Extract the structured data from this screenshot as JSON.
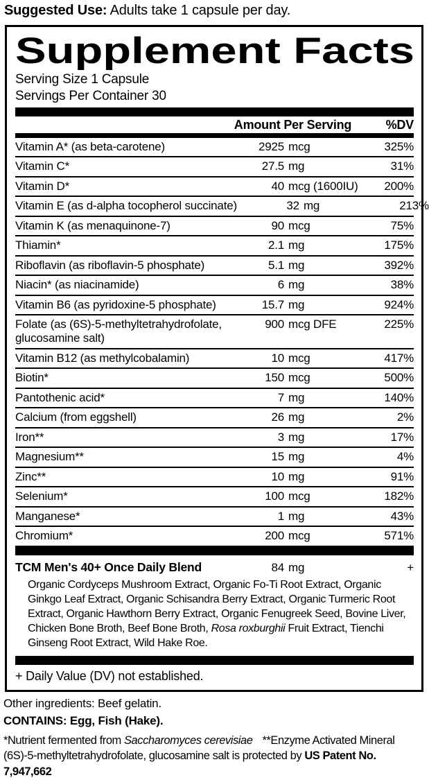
{
  "colors": {
    "ink": "#000000",
    "paper": "#ffffff"
  },
  "suggested_use": {
    "label": "Suggested Use:",
    "text": " Adults take 1 capsule per day."
  },
  "panel": {
    "title": "Supplement Facts",
    "serving_size": "Serving Size 1 Capsule",
    "servings_per_container": "Servings Per Container 30",
    "columns": {
      "amount": "Amount Per Serving",
      "dv": "%DV"
    },
    "rows": [
      {
        "name": "Vitamin A* (as beta-carotene)",
        "amount_num": "2925",
        "amount_unit": "mcg",
        "dv": "325%"
      },
      {
        "name": "Vitamin C*",
        "amount_num": "27.5",
        "amount_unit": "mg",
        "dv": "31%"
      },
      {
        "name": "Vitamin D*",
        "amount_num": "40",
        "amount_unit": "mcg (1600IU)",
        "dv": "200%"
      },
      {
        "name": "Vitamin E (as d-alpha tocopherol succinate)",
        "amount_num": "32",
        "amount_unit": "mg",
        "dv": "213%"
      },
      {
        "name": "Vitamin K (as menaquinone-7)",
        "amount_num": "90",
        "amount_unit": "mcg",
        "dv": "75%"
      },
      {
        "name": "Thiamin*",
        "amount_num": "2.1",
        "amount_unit": "mg",
        "dv": "175%"
      },
      {
        "name": "Riboflavin (as riboflavin-5 phosphate)",
        "amount_num": "5.1",
        "amount_unit": "mg",
        "dv": "392%"
      },
      {
        "name": "Niacin* (as niacinamide)",
        "amount_num": "6",
        "amount_unit": "mg",
        "dv": "38%"
      },
      {
        "name": "Vitamin B6 (as pyridoxine-5 phosphate)",
        "amount_num": "15.7",
        "amount_unit": "mg",
        "dv": "924%"
      },
      {
        "name": "Folate (as (6S)-5-methyltetrahydrofolate, glucosamine salt)",
        "amount_num": "900",
        "amount_unit": "mcg DFE",
        "dv": "225%"
      },
      {
        "name": "Vitamin B12 (as methylcobalamin)",
        "amount_num": "10",
        "amount_unit": "mcg",
        "dv": "417%"
      },
      {
        "name": "Biotin*",
        "amount_num": "150",
        "amount_unit": "mcg",
        "dv": "500%"
      },
      {
        "name": "Pantothenic acid*",
        "amount_num": "7",
        "amount_unit": "mg",
        "dv": "140%"
      },
      {
        "name": "Calcium (from eggshell)",
        "amount_num": "26",
        "amount_unit": "mg",
        "dv": "2%"
      },
      {
        "name": "Iron**",
        "amount_num": "3",
        "amount_unit": "mg",
        "dv": "17%"
      },
      {
        "name": "Magnesium**",
        "amount_num": "15",
        "amount_unit": "mg",
        "dv": "4%"
      },
      {
        "name": "Zinc**",
        "amount_num": "10",
        "amount_unit": "mg",
        "dv": "91%"
      },
      {
        "name": "Selenium*",
        "amount_num": "100",
        "amount_unit": "mcg",
        "dv": "182%"
      },
      {
        "name": "Manganese*",
        "amount_num": "1",
        "amount_unit": "mg",
        "dv": "43%"
      },
      {
        "name": "Chromium*",
        "amount_num": "200",
        "amount_unit": "mcg",
        "dv": "571%"
      }
    ],
    "blend": {
      "name": "TCM Men's 40+ Once Daily Blend",
      "amount_num": "84",
      "amount_unit": "mg",
      "dv": "+",
      "desc_before": "Organic Cordyceps Mushroom Extract, Organic Fo-Ti Root Extract, Organic Ginkgo Leaf Extract, Organic Schisandra Berry Extract, Organic Turmeric Root Extract, Organic Hawthorn Berry Extract, Organic Fenugreek Seed, Bovine Liver, Chicken Bone Broth, Beef Bone Broth, ",
      "desc_italic": "Rosa roxburghii",
      "desc_after": " Fruit Extract, Tienchi Ginseng Root Extract, Wild Hake Roe."
    },
    "footnote_dv": "+ Daily Value (DV) not established."
  },
  "footer": {
    "other_ingredients": "Other ingredients: Beef gelatin.",
    "contains": "CONTAINS: Egg, Fish (Hake).",
    "note1_before": "*Nutrient fermented from ",
    "note1_italic": "Saccharomyces cerevisiae",
    "note1_after": "**Enzyme Activated Mineral",
    "note2_before": "(6S)-5-methyltetrahydrofolate, glucosamine salt is protected by ",
    "note2_bold": "US Patent No. 7,947,662"
  }
}
